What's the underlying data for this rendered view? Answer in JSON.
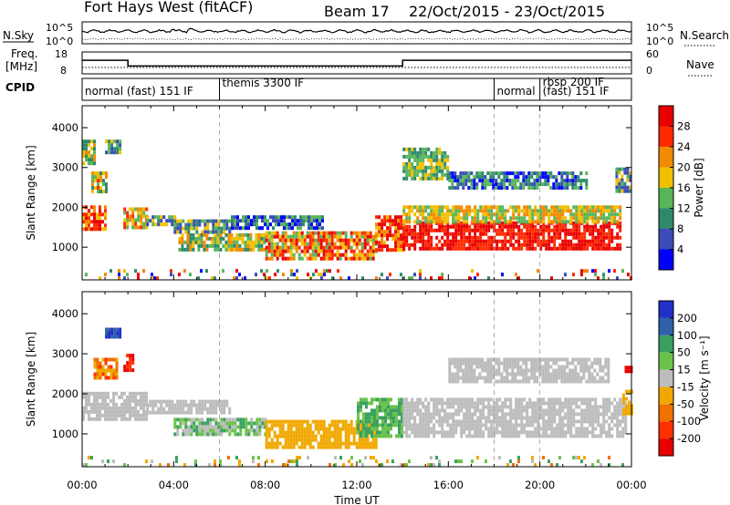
{
  "header": {
    "station": "Fort Hays West (fitACF)",
    "beam": "Beam 17",
    "dates": "22/Oct/2015 - 23/Oct/2015"
  },
  "strips": {
    "nsky": {
      "label": "N.Sky",
      "left_ticks": [
        "10^5",
        "10^0"
      ],
      "right_ticks": [
        "10^5",
        "10^0"
      ],
      "right_label": "N.Search"
    },
    "freq": {
      "label_top": "Freq.",
      "label_bottom": "[MHz]",
      "left_ticks": [
        "18",
        "8"
      ],
      "right_ticks": [
        "60",
        "0"
      ],
      "right_label": "Nave",
      "freq_segments": [
        {
          "start": 0.0,
          "end": 2.0,
          "level": 14.2
        },
        {
          "start": 2.0,
          "end": 14.0,
          "level": 11.6
        },
        {
          "start": 14.0,
          "end": 24.0,
          "level": 14.2
        }
      ]
    },
    "cpid": {
      "label": "CPID",
      "modes": [
        {
          "label": "normal (fast) 151 IF",
          "start": 0.0
        },
        {
          "label": "themis 3300 IF",
          "start": 6.0
        },
        {
          "label": "normal",
          "start": 18.0
        },
        {
          "label": "rbsp 200 IF",
          "start": 20.0
        },
        {
          "label": "(fast) 151 IF",
          "start": 20.0
        }
      ]
    }
  },
  "chart_data": [
    {
      "type": "heatmap",
      "name": "power",
      "ylabel": "Slant Range [km]",
      "xlim": [
        0,
        24
      ],
      "ylim": [
        180,
        4550
      ],
      "yticks": [
        1000,
        2000,
        3000,
        4000
      ],
      "colorbar": {
        "label": "Power [dB]",
        "ticks": [
          "28",
          "24",
          "20",
          "16",
          "12",
          "8",
          "4"
        ],
        "colors": [
          "#0000ff",
          "#3a4db8",
          "#2f8a6c",
          "#59b55a",
          "#f0c000",
          "#f08a00",
          "#ff2a00",
          "#e80000"
        ]
      },
      "regions": [
        {
          "t0": 0.0,
          "t1": 1.0,
          "r0": 1450,
          "r1": 2050,
          "c": [
            4,
            7
          ]
        },
        {
          "t0": 0.4,
          "t1": 1.1,
          "r0": 2400,
          "r1": 2900,
          "c": [
            2,
            6
          ]
        },
        {
          "t0": 0.0,
          "t1": 0.5,
          "r0": 3100,
          "r1": 3700,
          "c": [
            2,
            5
          ]
        },
        {
          "t0": 1.0,
          "t1": 1.7,
          "r0": 3400,
          "r1": 3700,
          "c": [
            1,
            4
          ]
        },
        {
          "t0": 1.8,
          "t1": 2.8,
          "r0": 1500,
          "r1": 2000,
          "c": [
            3,
            6
          ]
        },
        {
          "t0": 2.8,
          "t1": 4.0,
          "r0": 1550,
          "r1": 1800,
          "c": [
            1,
            4
          ]
        },
        {
          "t0": 4.0,
          "t1": 6.5,
          "r0": 1400,
          "r1": 1700,
          "c": [
            1,
            4
          ]
        },
        {
          "t0": 4.2,
          "t1": 8.0,
          "r0": 950,
          "r1": 1350,
          "c": [
            2,
            5
          ]
        },
        {
          "t0": 6.5,
          "t1": 10.5,
          "r0": 1500,
          "r1": 1800,
          "c": [
            0,
            3
          ]
        },
        {
          "t0": 8.0,
          "t1": 12.8,
          "r0": 700,
          "r1": 1400,
          "c": [
            3,
            7
          ]
        },
        {
          "t0": 12.8,
          "t1": 14.0,
          "r0": 950,
          "r1": 1800,
          "c": [
            4,
            7
          ]
        },
        {
          "t0": 14.0,
          "t1": 23.5,
          "r0": 1000,
          "r1": 1650,
          "c": [
            6,
            7
          ]
        },
        {
          "t0": 14.0,
          "t1": 23.5,
          "r0": 1650,
          "r1": 2050,
          "c": [
            3,
            5
          ]
        },
        {
          "t0": 16.0,
          "t1": 22.0,
          "r0": 2500,
          "r1": 2900,
          "c": [
            0,
            3
          ]
        },
        {
          "t0": 14.0,
          "t1": 16.0,
          "r0": 2700,
          "r1": 3500,
          "c": [
            2,
            4
          ]
        },
        {
          "t0": 23.3,
          "t1": 24.0,
          "r0": 2400,
          "r1": 3000,
          "c": [
            1,
            4
          ]
        },
        {
          "t0": 0.0,
          "t1": 24.0,
          "r0": 200,
          "r1": 450,
          "c": [
            0,
            7
          ]
        }
      ]
    },
    {
      "type": "heatmap",
      "name": "velocity",
      "xlabel": "Time UT",
      "ylabel": "Slant Range [km]",
      "xlim": [
        0,
        24
      ],
      "ylim": [
        180,
        4550
      ],
      "xticks": [
        "00:00",
        "04:00",
        "08:00",
        "12:00",
        "16:00",
        "20:00",
        "00:00"
      ],
      "yticks": [
        1000,
        2000,
        3000,
        4000
      ],
      "colorbar": {
        "label": "Velocity [m s⁻¹]",
        "ticks": [
          "200",
          "100",
          "50",
          "15",
          "-15",
          "-50",
          "-100",
          "-200"
        ],
        "colors": [
          "#e80000",
          "#ff3000",
          "#f07000",
          "#f0a800",
          "#bcbcbc",
          "#6ac24a",
          "#3aa060",
          "#3060a8",
          "#2030c8"
        ]
      },
      "regions": [
        {
          "t0": 0.0,
          "t1": 2.8,
          "r0": 1400,
          "r1": 2050,
          "c": [
            4,
            4
          ]
        },
        {
          "t0": 0.5,
          "t1": 1.5,
          "r0": 2400,
          "r1": 2900,
          "c": [
            1,
            3
          ]
        },
        {
          "t0": 1.8,
          "t1": 2.2,
          "r0": 2600,
          "r1": 3000,
          "c": [
            0,
            1
          ]
        },
        {
          "t0": 1.0,
          "t1": 1.6,
          "r0": 3400,
          "r1": 3650,
          "c": [
            7,
            8
          ]
        },
        {
          "t0": 2.8,
          "t1": 6.5,
          "r0": 1500,
          "r1": 1850,
          "c": [
            4,
            4
          ]
        },
        {
          "t0": 4.0,
          "t1": 8.0,
          "r0": 1000,
          "r1": 1400,
          "c": [
            4,
            6
          ]
        },
        {
          "t0": 8.0,
          "t1": 12.8,
          "r0": 650,
          "r1": 1350,
          "c": [
            3,
            3
          ]
        },
        {
          "t0": 12.0,
          "t1": 14.0,
          "r0": 900,
          "r1": 1900,
          "c": [
            5,
            6
          ]
        },
        {
          "t0": 14.0,
          "t1": 23.8,
          "r0": 950,
          "r1": 1900,
          "c": [
            4,
            4
          ]
        },
        {
          "t0": 16.0,
          "t1": 23.0,
          "r0": 2300,
          "r1": 2900,
          "c": [
            4,
            4
          ]
        },
        {
          "t0": 23.6,
          "t1": 24.0,
          "r0": 1500,
          "r1": 2100,
          "c": [
            3,
            3
          ]
        },
        {
          "t0": 23.7,
          "t1": 24.0,
          "r0": 2600,
          "r1": 2700,
          "c": [
            0,
            0
          ]
        },
        {
          "t0": 0.0,
          "t1": 24.0,
          "r0": 200,
          "r1": 450,
          "c": [
            2,
            6
          ]
        }
      ]
    }
  ]
}
